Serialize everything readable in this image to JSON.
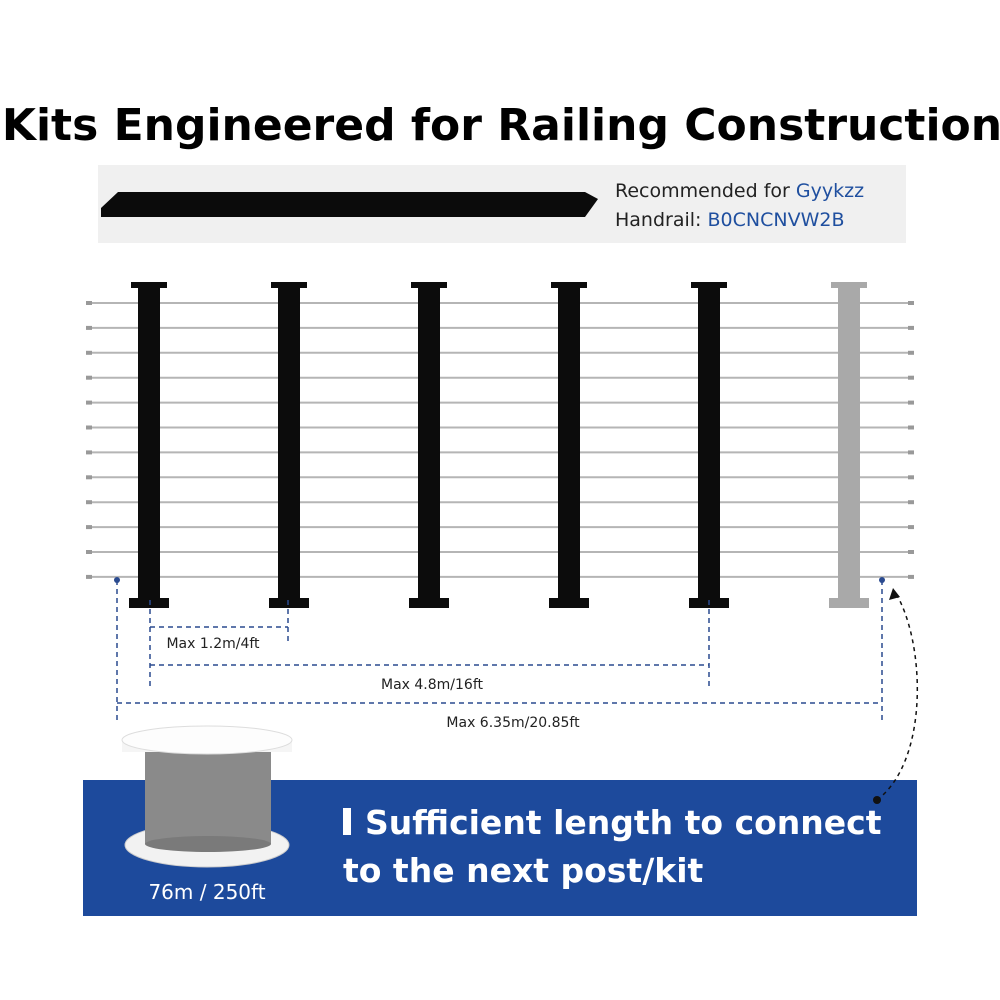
{
  "title": "Kits Engineered for Railing Construction",
  "handrail": {
    "recommend_label": "Recommended for",
    "brand": "Gyykzz",
    "handrail_label": "Handrail:",
    "asin": "B0CNCNVW2B"
  },
  "dimensions": [
    "Max 1.2m/4ft",
    "Max 4.8m/16ft",
    "Max 6.35m/20.85ft"
  ],
  "spool": {
    "label": "76m / 250ft"
  },
  "banner": {
    "line1": "Sufficient length to connect",
    "line2": "to the next post/kit"
  }
}
